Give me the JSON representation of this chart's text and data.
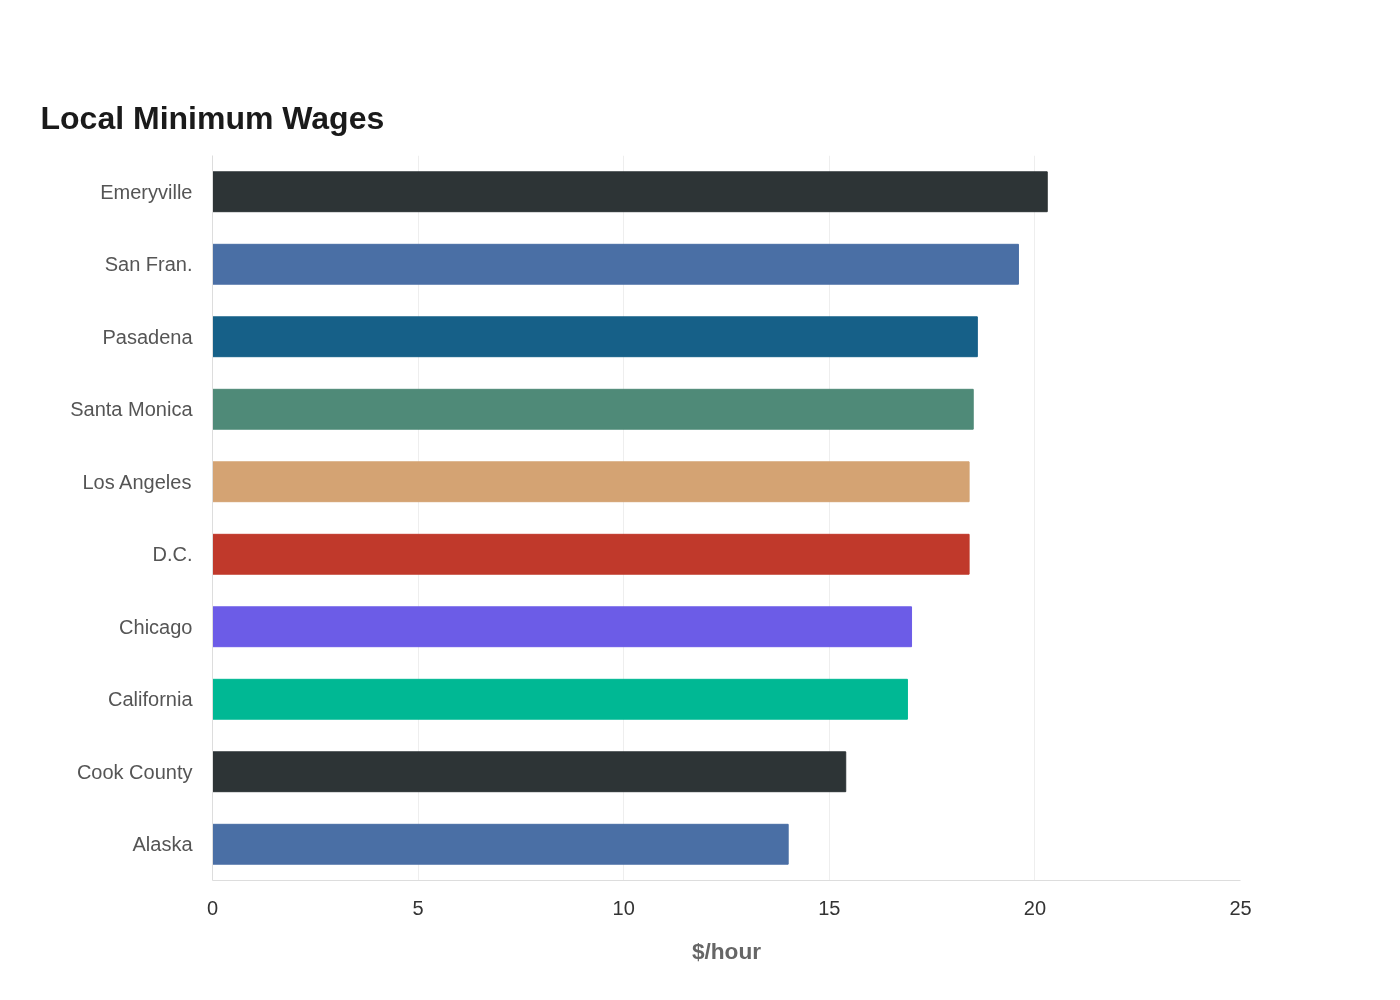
{
  "chart_data": {
    "type": "bar",
    "orientation": "horizontal",
    "title": "Local Minimum Wages",
    "xlabel": "$/hour",
    "categories": [
      "Emeryville",
      "San Fran.",
      "Pasadena",
      "Santa Monica",
      "Los Angeles",
      "D.C.",
      "Chicago",
      "California",
      "Cook County",
      "Alaska"
    ],
    "values": [
      20.3,
      19.6,
      18.6,
      18.5,
      18.4,
      18.4,
      17.0,
      16.9,
      15.4,
      14.0
    ],
    "colors": [
      "#2d3436",
      "#4a6fa5",
      "#166088",
      "#4f8a78",
      "#d4a373",
      "#c0392b",
      "#6c5ce7",
      "#00b894",
      "#2d3436",
      "#4a6fa5"
    ],
    "xlim": [
      0,
      25
    ],
    "xticks": [
      0,
      5,
      10,
      15,
      20,
      25
    ],
    "grid": "x"
  }
}
